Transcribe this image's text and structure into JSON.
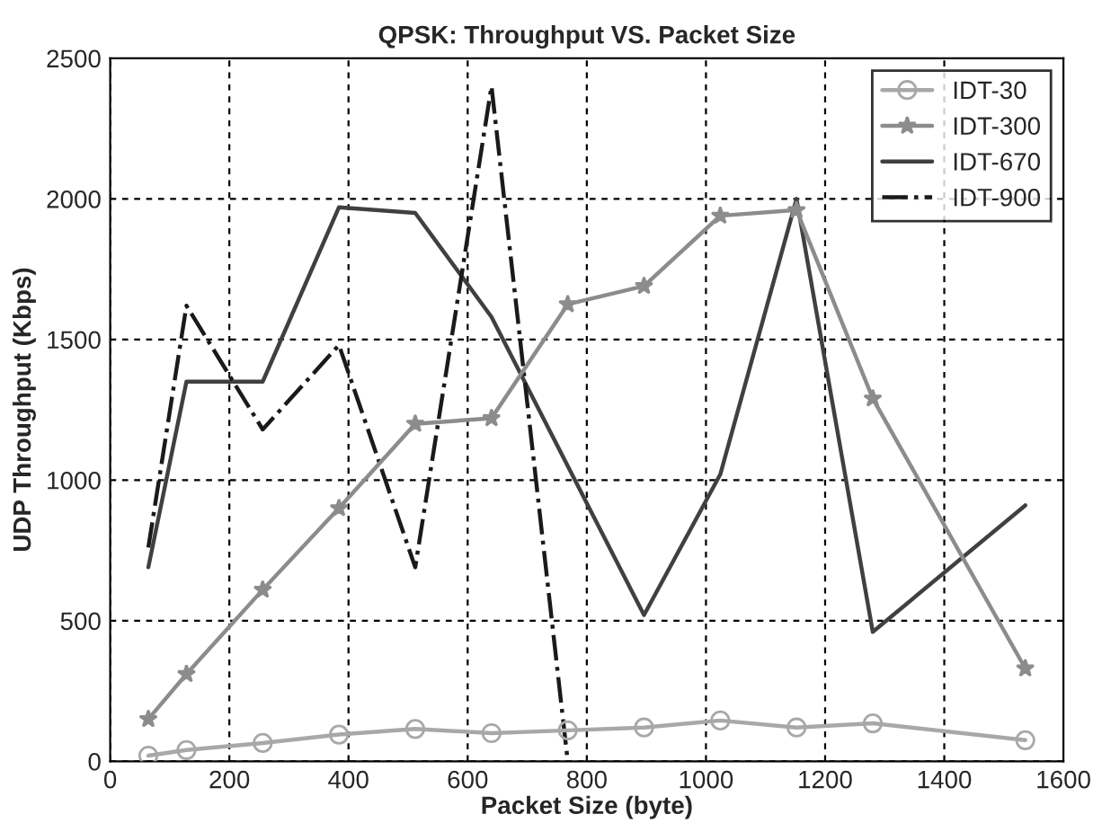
{
  "chart_data": {
    "type": "line",
    "title": "QPSK: Throughput VS. Packet Size",
    "xlabel": "Packet Size (byte)",
    "ylabel": "UDP Throughput (Kbps)",
    "x": [
      64,
      128,
      256,
      384,
      512,
      640,
      768,
      896,
      1024,
      1152,
      1280,
      1536
    ],
    "series": [
      {
        "name": "IDT-30",
        "color": "#a8a8a8",
        "marker": "circle",
        "line_style": "solid",
        "values": [
          20,
          40,
          65,
          95,
          115,
          100,
          110,
          120,
          145,
          120,
          135,
          75
        ]
      },
      {
        "name": "IDT-300",
        "color": "#8c8c8c",
        "marker": "star",
        "line_style": "solid",
        "values": [
          150,
          310,
          610,
          900,
          1200,
          1220,
          1625,
          1690,
          1940,
          1960,
          1290,
          330
        ]
      },
      {
        "name": "IDT-670",
        "color": "#404040",
        "marker": "none",
        "line_style": "solid",
        "x": [
          64,
          128,
          256,
          384,
          512,
          640,
          896,
          1024,
          1152,
          1280,
          1536
        ],
        "values": [
          690,
          1350,
          1350,
          1970,
          1950,
          1580,
          520,
          1020,
          2000,
          460,
          910
        ]
      },
      {
        "name": "IDT-900",
        "color": "#1a1a1a",
        "marker": "none",
        "line_style": "dashdot",
        "x": [
          64,
          128,
          256,
          384,
          512,
          640,
          768
        ],
        "values": [
          760,
          1620,
          1180,
          1480,
          690,
          2400,
          0
        ]
      }
    ],
    "xlim": [
      0,
      1600
    ],
    "xticks": [
      0,
      200,
      400,
      600,
      800,
      1000,
      1200,
      1400,
      1600
    ],
    "ylim": [
      0,
      2500
    ],
    "yticks": [
      0,
      500,
      1000,
      1500,
      2000,
      2500
    ],
    "grid": true,
    "legend": "top right"
  }
}
